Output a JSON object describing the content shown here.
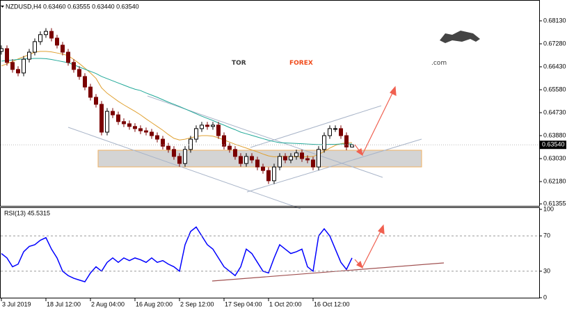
{
  "chart_data": {
    "type": "candlestick",
    "header": "NZDUSD,H4 0.63460 0.63555 0.63440 0.63540",
    "watermark": {
      "part1": "TOR",
      "part2": "FOREX",
      "part3": ".com"
    },
    "last_price_label": "0.63540",
    "bull_color": "#000000",
    "bear_color": "#7a0000",
    "categories": [
      "3 Jul 2019",
      null,
      null,
      null,
      null,
      null,
      null,
      null,
      "18 Jul 12:00",
      null,
      null,
      null,
      null,
      null,
      null,
      null,
      "2 Aug 04:00",
      null,
      null,
      null,
      null,
      null,
      null,
      null,
      "16 Aug 20:00",
      null,
      null,
      null,
      null,
      null,
      null,
      null,
      "2 Sep 12:00",
      null,
      null,
      null,
      null,
      null,
      null,
      null,
      "17 Sep 04:00",
      null,
      null,
      null,
      null,
      null,
      null,
      null,
      "1 Oct 20:00",
      null,
      null,
      null,
      null,
      null,
      null,
      null,
      "16 Oct 12:00",
      null,
      null,
      null,
      null,
      null,
      null,
      null
    ],
    "candles": [
      [
        0.67,
        0.6722,
        0.6688,
        0.671
      ],
      [
        0.671,
        0.6722,
        0.6647,
        0.6659
      ],
      [
        0.6659,
        0.6671,
        0.6621,
        0.6633
      ],
      [
        0.6633,
        0.6645,
        0.6608,
        0.662
      ],
      [
        0.662,
        0.6683,
        0.6608,
        0.6671
      ],
      [
        0.6671,
        0.6709,
        0.6659,
        0.6697
      ],
      [
        0.6697,
        0.6748,
        0.6685,
        0.6736
      ],
      [
        0.6736,
        0.6774,
        0.6724,
        0.6762
      ],
      [
        0.6762,
        0.6786,
        0.675,
        0.6774
      ],
      [
        0.6774,
        0.6786,
        0.6737,
        0.6749
      ],
      [
        0.6749,
        0.6761,
        0.6711,
        0.6723
      ],
      [
        0.6723,
        0.6735,
        0.6685,
        0.6697
      ],
      [
        0.6697,
        0.6709,
        0.6647,
        0.6659
      ],
      [
        0.6659,
        0.6671,
        0.6621,
        0.6633
      ],
      [
        0.6633,
        0.6645,
        0.6595,
        0.6607
      ],
      [
        0.6607,
        0.6619,
        0.6556,
        0.6568
      ],
      [
        0.6568,
        0.658,
        0.6518,
        0.653
      ],
      [
        0.653,
        0.6542,
        0.6492,
        0.6504
      ],
      [
        0.6504,
        0.6516,
        0.6389,
        0.6401
      ],
      [
        0.6401,
        0.649,
        0.6389,
        0.6478
      ],
      [
        0.6478,
        0.649,
        0.6453,
        0.6465
      ],
      [
        0.6465,
        0.6477,
        0.6428,
        0.644
      ],
      [
        0.644,
        0.6452,
        0.642,
        0.6432
      ],
      [
        0.6432,
        0.6444,
        0.641,
        0.6422
      ],
      [
        0.6422,
        0.6434,
        0.6402,
        0.6414
      ],
      [
        0.6414,
        0.6426,
        0.6394,
        0.6406
      ],
      [
        0.6406,
        0.6418,
        0.6389,
        0.6401
      ],
      [
        0.6401,
        0.6413,
        0.6376,
        0.6388
      ],
      [
        0.6388,
        0.64,
        0.6363,
        0.6375
      ],
      [
        0.6375,
        0.6387,
        0.6337,
        0.6349
      ],
      [
        0.6349,
        0.6361,
        0.6325,
        0.6337
      ],
      [
        0.6337,
        0.6349,
        0.6299,
        0.6311
      ],
      [
        0.6311,
        0.6323,
        0.6273,
        0.6285
      ],
      [
        0.6285,
        0.6349,
        0.6273,
        0.6337
      ],
      [
        0.6337,
        0.6387,
        0.6325,
        0.6375
      ],
      [
        0.6375,
        0.6426,
        0.6363,
        0.6414
      ],
      [
        0.6414,
        0.6439,
        0.6402,
        0.6427
      ],
      [
        0.6427,
        0.6439,
        0.641,
        0.6422
      ],
      [
        0.6422,
        0.6439,
        0.641,
        0.6427
      ],
      [
        0.6427,
        0.6439,
        0.6376,
        0.6388
      ],
      [
        0.6388,
        0.64,
        0.6337,
        0.6349
      ],
      [
        0.6349,
        0.6361,
        0.6325,
        0.6337
      ],
      [
        0.6337,
        0.6349,
        0.6299,
        0.6311
      ],
      [
        0.6311,
        0.6323,
        0.6273,
        0.6285
      ],
      [
        0.6285,
        0.6323,
        0.6273,
        0.6311
      ],
      [
        0.6311,
        0.6323,
        0.6286,
        0.6298
      ],
      [
        0.6298,
        0.631,
        0.626,
        0.6272
      ],
      [
        0.6272,
        0.6284,
        0.6247,
        0.6259
      ],
      [
        0.6259,
        0.6271,
        0.6209,
        0.6221
      ],
      [
        0.6221,
        0.6284,
        0.6209,
        0.6272
      ],
      [
        0.6272,
        0.6323,
        0.626,
        0.6311
      ],
      [
        0.6311,
        0.6323,
        0.6286,
        0.6298
      ],
      [
        0.6298,
        0.6323,
        0.6286,
        0.6311
      ],
      [
        0.6311,
        0.6336,
        0.6299,
        0.6324
      ],
      [
        0.6324,
        0.6336,
        0.6291,
        0.6303
      ],
      [
        0.6303,
        0.6315,
        0.6286,
        0.6298
      ],
      [
        0.6298,
        0.631,
        0.626,
        0.6272
      ],
      [
        0.6272,
        0.6349,
        0.626,
        0.6337
      ],
      [
        0.6337,
        0.64,
        0.6325,
        0.6388
      ],
      [
        0.6388,
        0.6426,
        0.6376,
        0.6414
      ],
      [
        0.6414,
        0.6426,
        0.6402,
        0.6414
      ],
      [
        0.6414,
        0.6426,
        0.6376,
        0.6388
      ],
      [
        0.6388,
        0.64,
        0.6334,
        0.6346
      ],
      [
        0.6346,
        0.63555,
        0.6344,
        0.6354
      ]
    ],
    "moving_averages": [
      {
        "color": "#e0a030",
        "values": [
          0.6646,
          0.6654,
          0.6662,
          0.6672,
          0.668,
          0.6688,
          0.6697,
          0.67,
          0.67,
          0.6698,
          0.6694,
          0.669,
          0.6684,
          0.667,
          0.6655,
          0.6638,
          0.662,
          0.66,
          0.6565,
          0.6545,
          0.653,
          0.6515,
          0.6502,
          0.649,
          0.6478,
          0.6465,
          0.645,
          0.6436,
          0.6422,
          0.6408,
          0.6392,
          0.6378,
          0.6372,
          0.6375,
          0.638,
          0.6385,
          0.6388,
          0.6388,
          0.6386,
          0.638,
          0.6372,
          0.6364,
          0.6356,
          0.6349,
          0.6342,
          0.6335,
          0.6328,
          0.632,
          0.6313,
          0.631,
          0.6311,
          0.6311,
          0.631,
          0.631,
          0.631,
          0.631,
          0.6311,
          0.6318,
          0.633,
          0.6342,
          0.6352,
          0.6358,
          0.6362,
          0.6362
        ]
      },
      {
        "color": "#20a898",
        "values": [
          0.6664,
          0.6666,
          0.6668,
          0.667,
          0.6672,
          0.6673,
          0.6674,
          0.6674,
          0.6673,
          0.667,
          0.6666,
          0.6662,
          0.6658,
          0.665,
          0.6642,
          0.6634,
          0.6626,
          0.6618,
          0.6607,
          0.6599,
          0.6591,
          0.6583,
          0.6575,
          0.6567,
          0.656,
          0.6555,
          0.6546,
          0.6538,
          0.653,
          0.6521,
          0.6512,
          0.6504,
          0.6496,
          0.6487,
          0.6478,
          0.6469,
          0.646,
          0.6452,
          0.6444,
          0.6435,
          0.6427,
          0.6418,
          0.641,
          0.6401,
          0.6395,
          0.6389,
          0.6383,
          0.6377,
          0.6371,
          0.6366,
          0.6362,
          0.6361,
          0.636,
          0.6359,
          0.6358,
          0.6357,
          0.6356,
          0.6355,
          0.6355,
          0.6356,
          0.6356,
          0.6357,
          0.6357,
          0.6357
        ]
      }
    ],
    "ylim": [
      0.6128,
      0.6885
    ],
    "yticks": [
      {
        "value": 0.6813,
        "label": "0.68130"
      },
      {
        "value": 0.6728,
        "label": "0.67280"
      },
      {
        "value": 0.6643,
        "label": "0.66430"
      },
      {
        "value": 0.6558,
        "label": "0.65580"
      },
      {
        "value": 0.6473,
        "label": "0.64730"
      },
      {
        "value": 0.6388,
        "label": "0.63880"
      },
      {
        "value": 0.6303,
        "label": "0.63030"
      },
      {
        "value": 0.6218,
        "label": "0.62180"
      },
      0.61355
    ],
    "rsi": {
      "label": "RSI(13) 45.5315",
      "color": "#0000ff",
      "values": [
        50,
        45,
        35,
        38,
        52,
        58,
        60,
        65,
        68,
        55,
        45,
        30,
        25,
        22,
        20,
        18,
        28,
        35,
        30,
        40,
        45,
        40,
        45,
        42,
        45,
        43,
        40,
        45,
        40,
        42,
        38,
        35,
        30,
        60,
        75,
        80,
        70,
        60,
        55,
        45,
        35,
        30,
        25,
        35,
        55,
        50,
        40,
        30,
        28,
        45,
        60,
        55,
        50,
        52,
        55,
        35,
        30,
        70,
        78,
        70,
        55,
        40,
        32,
        45
      ],
      "ylim": [
        0,
        100
      ],
      "yticks": [
        100,
        70,
        30,
        0
      ],
      "levels": [
        70,
        30
      ]
    }
  }
}
